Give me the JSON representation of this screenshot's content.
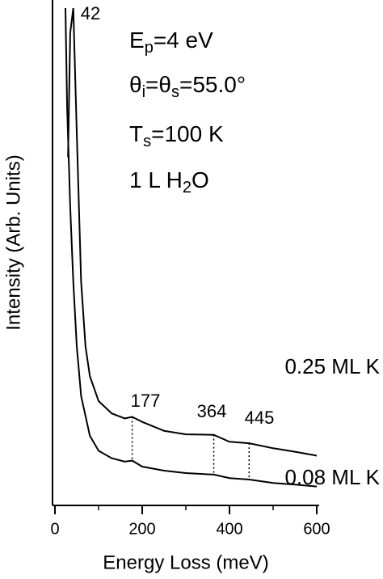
{
  "chart_data": {
    "type": "line",
    "xlabel": "Energy Loss (meV)",
    "ylabel": "Intensity (Arb. Units)",
    "xlim": [
      0,
      600
    ],
    "xticks": [
      0,
      200,
      400,
      600
    ],
    "xticks_minor": [
      100,
      300,
      500
    ],
    "ylim": [
      0,
      100
    ],
    "conditions": [
      [
        "E",
        "p",
        "=4 eV"
      ],
      [
        "θ",
        "i",
        "=θ",
        "s",
        "=55.0°"
      ],
      [
        "T",
        "s",
        "=100 K"
      ],
      [
        "1 L H",
        "2",
        "O"
      ]
    ],
    "peaks": [
      42,
      177,
      364,
      445
    ],
    "series": [
      {
        "name": "0.25 ML K",
        "color": "#000000",
        "x": [
          30,
          35,
          42,
          50,
          60,
          70,
          80,
          100,
          130,
          160,
          177,
          200,
          250,
          300,
          364,
          400,
          445,
          500,
          550,
          600
        ],
        "values": [
          70,
          95,
          100,
          75,
          45,
          32,
          26,
          21,
          18.5,
          17.5,
          17.8,
          16.8,
          15,
          14.3,
          14.2,
          12.8,
          12.5,
          11.5,
          10.8,
          10
        ]
      },
      {
        "name": "0.08 ML K",
        "color": "#000000",
        "x": [
          24,
          28,
          35,
          42,
          50,
          60,
          80,
          100,
          130,
          160,
          177,
          200,
          250,
          300,
          364,
          400,
          445,
          500,
          550,
          600
        ],
        "values": [
          100,
          80,
          60,
          45,
          32,
          22,
          14,
          11,
          9.5,
          8.8,
          9,
          7.8,
          7,
          6.5,
          6.2,
          5.5,
          5.2,
          4.5,
          4.2,
          3.8
        ]
      }
    ]
  }
}
